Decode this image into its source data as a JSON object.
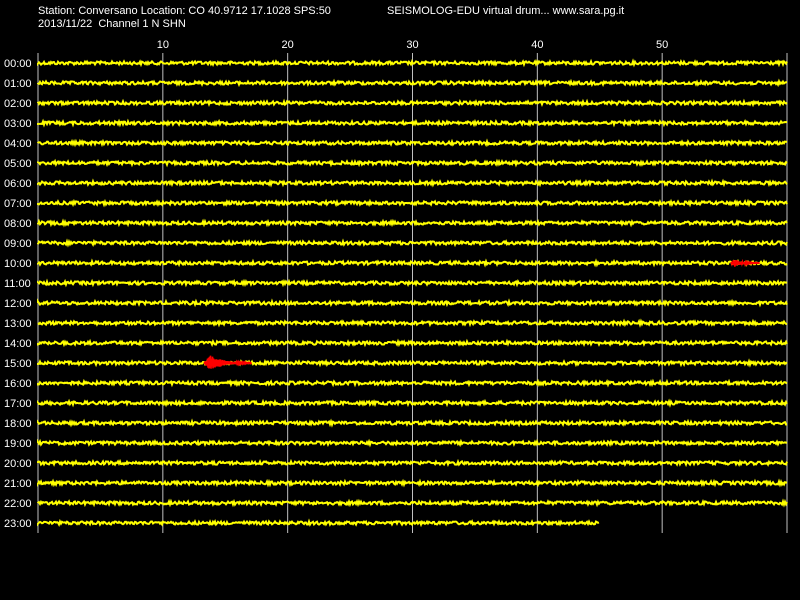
{
  "header": {
    "station_line": "Station: Conversano Location: CO 40.9712 17.1028 SPS:50",
    "title_line": "SEISMOLOG-EDU virtual drum... www.sara.pg.it",
    "date_line": "2013/11/22  Channel 1 N SHN"
  },
  "colors": {
    "background": "#000000",
    "trace": "#ffff00",
    "event": "#ff0000",
    "grid": "#c0c0c0",
    "text": "#ffffff"
  },
  "chart_data": {
    "type": "line",
    "title": "SEISMOLOG-EDU virtual drum... www.sara.pg.it",
    "xlabel": "",
    "ylabel": "",
    "xlim": [
      0,
      60
    ],
    "x_ticks": [
      "10",
      "20",
      "30",
      "40",
      "50"
    ],
    "grid": true,
    "rows": [
      {
        "label": "00:00",
        "end_minute": 60
      },
      {
        "label": "01:00",
        "end_minute": 60
      },
      {
        "label": "02:00",
        "end_minute": 60
      },
      {
        "label": "03:00",
        "end_minute": 60
      },
      {
        "label": "04:00",
        "end_minute": 60
      },
      {
        "label": "05:00",
        "end_minute": 60
      },
      {
        "label": "06:00",
        "end_minute": 60
      },
      {
        "label": "07:00",
        "end_minute": 60
      },
      {
        "label": "08:00",
        "end_minute": 60
      },
      {
        "label": "09:00",
        "end_minute": 60
      },
      {
        "label": "10:00",
        "end_minute": 60
      },
      {
        "label": "11:00",
        "end_minute": 60
      },
      {
        "label": "12:00",
        "end_minute": 60
      },
      {
        "label": "13:00",
        "end_minute": 60
      },
      {
        "label": "14:00",
        "end_minute": 60
      },
      {
        "label": "15:00",
        "end_minute": 60
      },
      {
        "label": "16:00",
        "end_minute": 60
      },
      {
        "label": "17:00",
        "end_minute": 60
      },
      {
        "label": "18:00",
        "end_minute": 60
      },
      {
        "label": "19:00",
        "end_minute": 60
      },
      {
        "label": "20:00",
        "end_minute": 60
      },
      {
        "label": "21:00",
        "end_minute": 60
      },
      {
        "label": "22:00",
        "end_minute": 60
      },
      {
        "label": "23:00",
        "end_minute": 45
      }
    ],
    "events": [
      {
        "row": "10:00",
        "start_minute": 55.5,
        "end_minute": 57.8,
        "amplitude": "small"
      },
      {
        "row": "15:00",
        "start_minute": 13.3,
        "end_minute": 17.1,
        "amplitude": "large"
      }
    ]
  }
}
